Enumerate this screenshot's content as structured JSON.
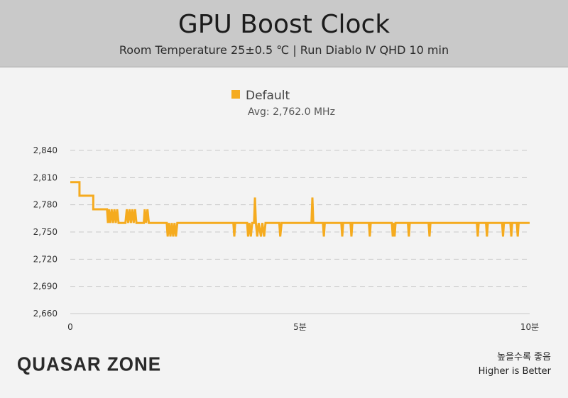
{
  "header": {
    "title": "GPU Boost Clock",
    "subtitle": "Room Temperature 25±0.5 ℃  | Run Diablo Ⅳ QHD 10 min"
  },
  "legend": {
    "label": "Default",
    "avg": "Avg: 2,762.0 MHz"
  },
  "footer": {
    "logo": "QUASAR ZONE",
    "note_ko": "높을수록 좋음",
    "note_en": "Higher is Better"
  },
  "colors": {
    "series": "#f5ab1f",
    "grid": "#c8c8c8"
  },
  "chart_data": {
    "type": "line",
    "title": "GPU Boost Clock",
    "subtitle": "Room Temperature 25±0.5 ℃  | Run Diablo Ⅳ QHD 10 min",
    "xlabel": "",
    "ylabel": "",
    "xlim": [
      0,
      10
    ],
    "ylim": [
      2660,
      2840
    ],
    "yticks": [
      2840,
      2810,
      2780,
      2750,
      2720,
      2690,
      2660
    ],
    "ytick_labels": [
      "2,840",
      "2,810",
      "2,780",
      "2,750",
      "2,720",
      "2,690",
      "2,660"
    ],
    "xticks": [
      0,
      5,
      10
    ],
    "xtick_labels": [
      "0",
      "5분",
      "10분"
    ],
    "grid": true,
    "legend_position": "top-center",
    "series": [
      {
        "name": "Default",
        "color": "#f5ab1f",
        "points": [
          [
            0.0,
            2805
          ],
          [
            0.2,
            2805
          ],
          [
            0.2,
            2790
          ],
          [
            0.5,
            2790
          ],
          [
            0.5,
            2775
          ],
          [
            0.8,
            2775
          ],
          [
            0.82,
            2760
          ],
          [
            0.84,
            2775
          ],
          [
            0.87,
            2760
          ],
          [
            0.9,
            2775
          ],
          [
            0.93,
            2760
          ],
          [
            0.96,
            2775
          ],
          [
            0.99,
            2760
          ],
          [
            1.02,
            2775
          ],
          [
            1.05,
            2760
          ],
          [
            1.2,
            2760
          ],
          [
            1.23,
            2775
          ],
          [
            1.26,
            2760
          ],
          [
            1.29,
            2775
          ],
          [
            1.32,
            2760
          ],
          [
            1.35,
            2775
          ],
          [
            1.38,
            2760
          ],
          [
            1.41,
            2775
          ],
          [
            1.44,
            2760
          ],
          [
            1.6,
            2760
          ],
          [
            1.62,
            2775
          ],
          [
            1.65,
            2760
          ],
          [
            1.68,
            2775
          ],
          [
            1.71,
            2760
          ],
          [
            2.1,
            2760
          ],
          [
            2.12,
            2745
          ],
          [
            2.15,
            2760
          ],
          [
            2.18,
            2745
          ],
          [
            2.21,
            2760
          ],
          [
            2.24,
            2745
          ],
          [
            2.27,
            2760
          ],
          [
            2.3,
            2745
          ],
          [
            2.33,
            2760
          ],
          [
            3.55,
            2760
          ],
          [
            3.57,
            2745
          ],
          [
            3.59,
            2760
          ],
          [
            3.85,
            2760
          ],
          [
            3.87,
            2745
          ],
          [
            3.9,
            2760
          ],
          [
            3.93,
            2745
          ],
          [
            3.96,
            2760
          ],
          [
            4.0,
            2760
          ],
          [
            4.02,
            2788
          ],
          [
            4.04,
            2760
          ],
          [
            4.07,
            2745
          ],
          [
            4.1,
            2760
          ],
          [
            4.15,
            2745
          ],
          [
            4.18,
            2760
          ],
          [
            4.22,
            2745
          ],
          [
            4.25,
            2760
          ],
          [
            4.55,
            2760
          ],
          [
            4.57,
            2745
          ],
          [
            4.6,
            2760
          ],
          [
            5.25,
            2760
          ],
          [
            5.27,
            2788
          ],
          [
            5.29,
            2760
          ],
          [
            5.5,
            2760
          ],
          [
            5.52,
            2745
          ],
          [
            5.54,
            2760
          ],
          [
            5.9,
            2760
          ],
          [
            5.92,
            2745
          ],
          [
            5.94,
            2760
          ],
          [
            6.1,
            2760
          ],
          [
            6.12,
            2745
          ],
          [
            6.14,
            2760
          ],
          [
            6.5,
            2760
          ],
          [
            6.52,
            2745
          ],
          [
            6.54,
            2760
          ],
          [
            7.0,
            2760
          ],
          [
            7.02,
            2745
          ],
          [
            7.04,
            2760
          ],
          [
            7.06,
            2745
          ],
          [
            7.08,
            2760
          ],
          [
            7.35,
            2760
          ],
          [
            7.37,
            2745
          ],
          [
            7.39,
            2760
          ],
          [
            7.8,
            2760
          ],
          [
            7.82,
            2745
          ],
          [
            7.84,
            2760
          ],
          [
            8.85,
            2760
          ],
          [
            8.87,
            2745
          ],
          [
            8.89,
            2760
          ],
          [
            9.05,
            2760
          ],
          [
            9.07,
            2745
          ],
          [
            9.09,
            2760
          ],
          [
            9.4,
            2760
          ],
          [
            9.42,
            2745
          ],
          [
            9.44,
            2760
          ],
          [
            9.58,
            2760
          ],
          [
            9.6,
            2745
          ],
          [
            9.62,
            2760
          ],
          [
            9.72,
            2760
          ],
          [
            9.74,
            2745
          ],
          [
            9.76,
            2760
          ],
          [
            10.0,
            2760
          ]
        ]
      }
    ]
  }
}
